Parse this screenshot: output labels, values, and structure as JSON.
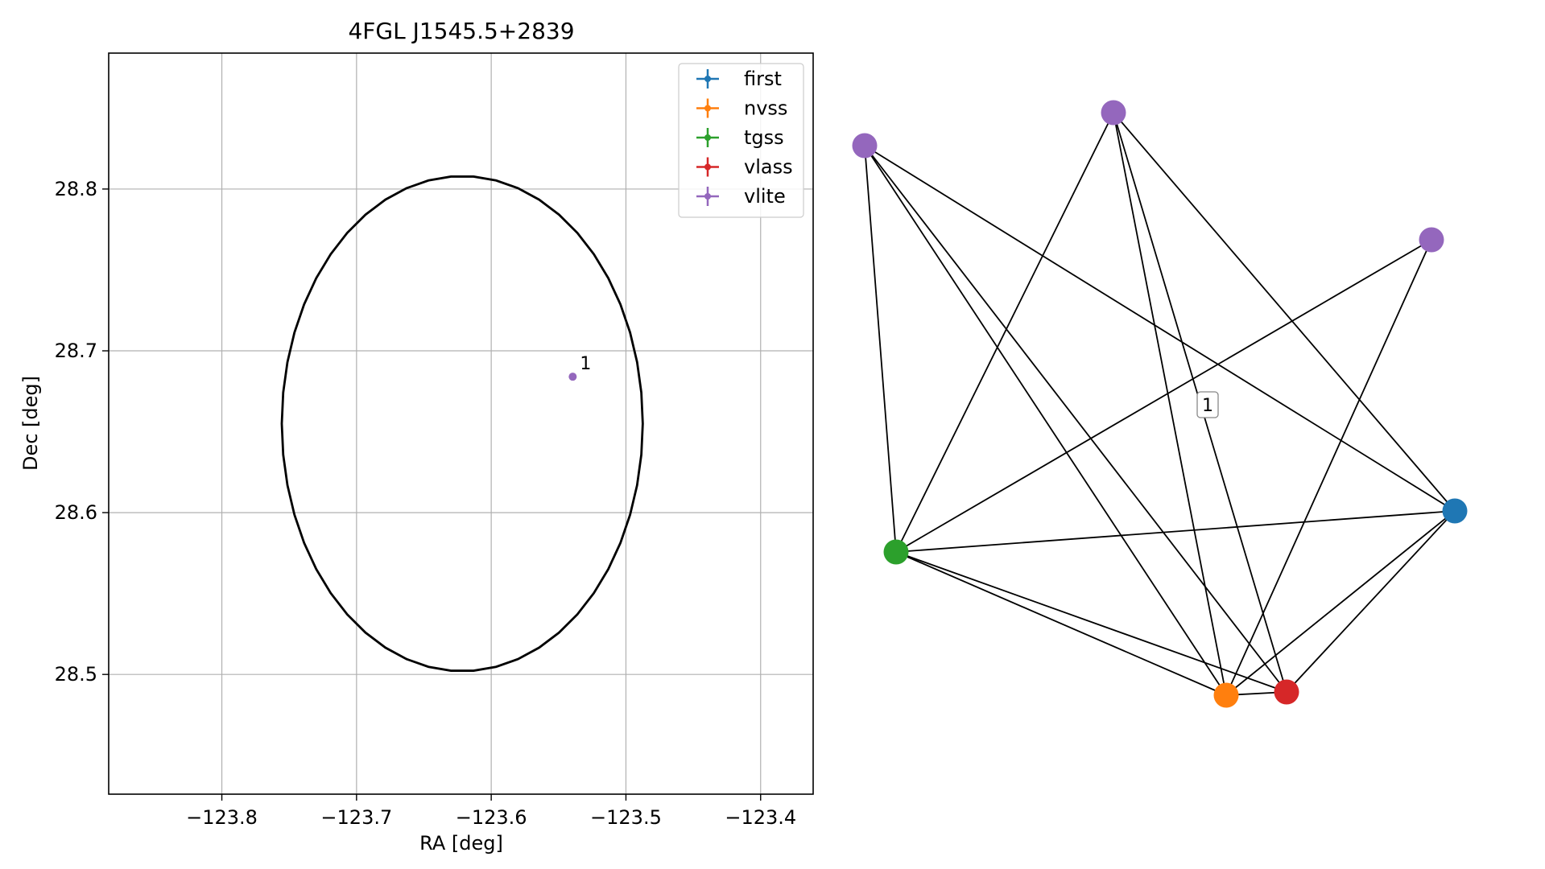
{
  "chart_data": [
    {
      "type": "scatter",
      "title": "4FGL J1545.5+2839",
      "xlabel": "RA [deg]",
      "ylabel": "Dec [deg]",
      "xlim": [
        -123.884,
        -123.361
      ],
      "ylim": [
        28.426,
        28.884
      ],
      "xticks": [
        -123.8,
        -123.7,
        -123.6,
        -123.5,
        -123.4
      ],
      "xtick_labels": [
        "−123.8",
        "−123.7",
        "−123.6",
        "−123.5",
        "−123.4"
      ],
      "yticks": [
        28.5,
        28.6,
        28.7,
        28.8
      ],
      "ytick_labels": [
        "28.5",
        "28.6",
        "28.7",
        "28.8"
      ],
      "grid": true,
      "legend_position": "upper-right",
      "legend": [
        {
          "name": "first",
          "color": "#1f77b4"
        },
        {
          "name": "nvss",
          "color": "#ff7f0e"
        },
        {
          "name": "tgss",
          "color": "#2ca02c"
        },
        {
          "name": "vlass",
          "color": "#d62728"
        },
        {
          "name": "vlite",
          "color": "#9467bd"
        }
      ],
      "ellipse": {
        "center": [
          -123.6215,
          28.655
        ],
        "ra_semi_axis": 0.134,
        "dec_semi_axis": 0.153,
        "color": "#000000"
      },
      "points": [
        {
          "series": "vlite",
          "ra": -123.5395,
          "dec": 28.684,
          "label": "1",
          "color": "#9467bd"
        }
      ]
    },
    {
      "type": "network",
      "node_color_key": {
        "first": "#1f77b4",
        "nvss": "#ff7f0e",
        "tgss": "#2ca02c",
        "vlass": "#d62728",
        "vlite": "#9467bd"
      },
      "nodes": [
        {
          "id": "vlite_a",
          "color": "#9467bd"
        },
        {
          "id": "vlite_b",
          "color": "#9467bd"
        },
        {
          "id": "vlite_c",
          "color": "#9467bd"
        },
        {
          "id": "tgss",
          "color": "#2ca02c"
        },
        {
          "id": "first",
          "color": "#1f77b4"
        },
        {
          "id": "nvss",
          "color": "#ff7f0e"
        },
        {
          "id": "vlass",
          "color": "#d62728"
        }
      ],
      "edges": [
        [
          "vlite_a",
          "tgss"
        ],
        [
          "vlite_a",
          "nvss"
        ],
        [
          "vlite_a",
          "vlass"
        ],
        [
          "vlite_a",
          "first"
        ],
        [
          "vlite_b",
          "tgss"
        ],
        [
          "vlite_b",
          "nvss"
        ],
        [
          "vlite_b",
          "vlass"
        ],
        [
          "vlite_b",
          "first"
        ],
        [
          "vlite_c",
          "tgss"
        ],
        [
          "vlite_c",
          "nvss"
        ],
        [
          "tgss",
          "first"
        ],
        [
          "tgss",
          "nvss"
        ],
        [
          "tgss",
          "vlass"
        ],
        [
          "first",
          "nvss"
        ],
        [
          "first",
          "vlass"
        ],
        [
          "nvss",
          "vlass"
        ]
      ],
      "cluster_label": "1"
    }
  ]
}
